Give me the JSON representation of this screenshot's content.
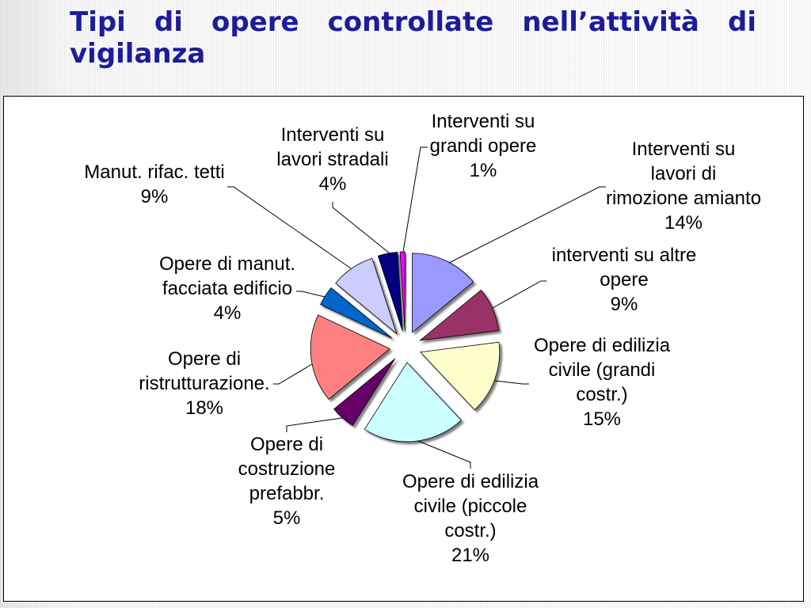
{
  "theme": {
    "title_color": "#1c1c9c"
  },
  "chart_data": {
    "type": "pie",
    "exploded": true,
    "title": "Tipi di opere controllate nell’attività di vigilanza",
    "slices": [
      {
        "label_lines": [
          "Interventi su",
          "lavori di",
          "rimozione amianto"
        ],
        "value": 14,
        "value_label": "14%",
        "color": "#9999FF"
      },
      {
        "label_lines": [
          "interventi su altre",
          "opere"
        ],
        "value": 9,
        "value_label": "9%",
        "color": "#993366"
      },
      {
        "label_lines": [
          "Opere di edilizia",
          "civile (grandi",
          "costr.)"
        ],
        "value": 15,
        "value_label": "15%",
        "color": "#FFFFCC"
      },
      {
        "label_lines": [
          "Opere di edilizia",
          "civile (piccole",
          "costr.)"
        ],
        "value": 21,
        "value_label": "21%",
        "color": "#CCFFFF"
      },
      {
        "label_lines": [
          "Opere di",
          "costruzione",
          "prefabbr."
        ],
        "value": 5,
        "value_label": "5%",
        "color": "#660066"
      },
      {
        "label_lines": [
          "Opere di",
          "ristrutturazione."
        ],
        "value": 18,
        "value_label": "18%",
        "color": "#FF8080"
      },
      {
        "label_lines": [
          "Opere di manut.",
          "facciata edificio"
        ],
        "value": 4,
        "value_label": "4%",
        "color": "#0066CC"
      },
      {
        "label_lines": [
          "Manut. rifac. tetti"
        ],
        "value": 9,
        "value_label": "9%",
        "color": "#CCCCFF"
      },
      {
        "label_lines": [
          "Interventi su",
          "lavori stradali"
        ],
        "value": 4,
        "value_label": "4%",
        "color": "#000080"
      },
      {
        "label_lines": [
          "Interventi su",
          "grandi opere"
        ],
        "value": 1,
        "value_label": "1%",
        "color": "#FF00FF"
      }
    ]
  }
}
